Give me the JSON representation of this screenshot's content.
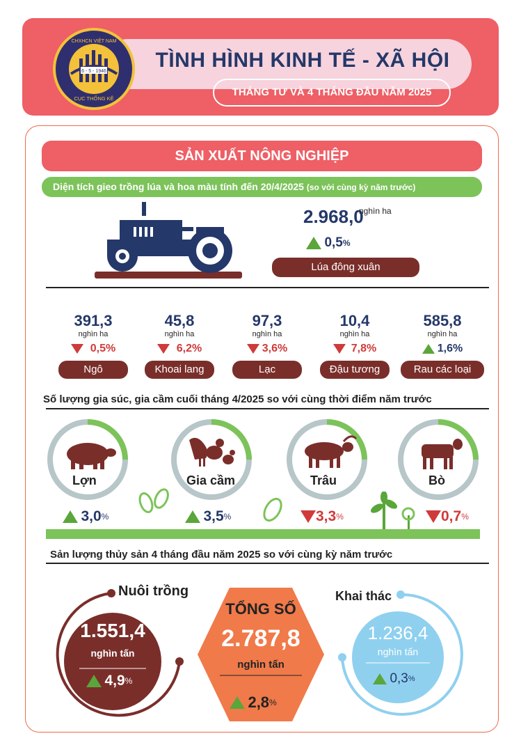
{
  "header": {
    "logo_text": "CHXHCN VIỆT NAM · 6 - 5 - 1946 · CỤC THỐNG KÊ",
    "title": "TÌNH HÌNH KINH TẾ - XÃ HỘI",
    "subtitle": "THÁNG TƯ VÀ 4 THÁNG ĐẦU NĂM 2025"
  },
  "section": {
    "title": "SẢN XUẤT NÔNG NGHIỆP",
    "planting_heading": "Diện tích gieo trồng lúa và hoa màu tính đến 20/4/2025",
    "planting_note": "(so với cùng kỳ năm trước)"
  },
  "rice": {
    "value": "2.968,0",
    "unit": "nghìn ha",
    "change": "0,5",
    "change_suffix": "%",
    "label": "Lúa đông xuân"
  },
  "crops": [
    {
      "value": "391,3",
      "unit": "nghìn ha",
      "change": "0,5%",
      "direction": "down",
      "label": "Ngô"
    },
    {
      "value": "45,8",
      "unit": "nghìn ha",
      "change": "6,2%",
      "direction": "down",
      "label": "Khoai lang"
    },
    {
      "value": "97,3",
      "unit": "nghìn ha",
      "change": "3,6%",
      "direction": "down",
      "label": "Lạc"
    },
    {
      "value": "10,4",
      "unit": "nghìn ha",
      "change": "7,8%",
      "direction": "down",
      "label": "Đậu tương"
    },
    {
      "value": "585,8",
      "unit": "nghìn ha",
      "change": "1,6%",
      "direction": "up",
      "label": "Rau các loại"
    }
  ],
  "livestock": {
    "heading": "Số lượng gia súc, gia cầm cuối tháng 4/2025 so với cùng thời điểm năm trước",
    "items": [
      {
        "label": "Lợn",
        "change": "3,0",
        "suffix": "%",
        "direction": "up"
      },
      {
        "label": "Gia cầm",
        "change": "3,5",
        "suffix": "%",
        "direction": "up"
      },
      {
        "label": "Trâu",
        "change": "3,3",
        "suffix": "%",
        "direction": "down"
      },
      {
        "label": "Bò",
        "change": "0,7",
        "suffix": "%",
        "direction": "down"
      }
    ]
  },
  "fishery": {
    "heading": "Sản lượng thủy sản 4 tháng đầu năm 2025 so với cùng kỳ năm trước",
    "aquaculture": {
      "label": "Nuôi trồng",
      "value": "1.551,4",
      "unit": "nghìn tấn",
      "change": "4,9",
      "suffix": "%"
    },
    "total": {
      "label": "TỔNG SỐ",
      "value": "2.787,8",
      "unit": "nghìn tấn",
      "change": "2,8",
      "suffix": "%"
    },
    "capture": {
      "label": "Khai thác",
      "value": "1.236,4",
      "unit": "nghìn tấn",
      "change": "0,3",
      "suffix": "%"
    }
  },
  "colors": {
    "header_red": "#ee5f66",
    "navy": "#243869",
    "green": "#7cc35a",
    "brown": "#7a2e2a",
    "orange": "#f07a4a",
    "light_blue": "#8fd0ef",
    "down_red": "#d03a3a",
    "up_green": "#5aa63a"
  }
}
